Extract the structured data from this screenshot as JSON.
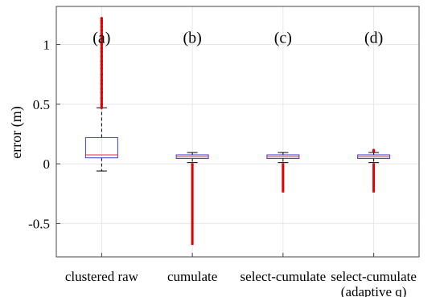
{
  "chart_data": {
    "type": "box",
    "title": "",
    "xlabel": "",
    "ylabel": "error (m)",
    "ylim": [
      -0.78,
      1.32
    ],
    "yticks": [
      -0.5,
      0,
      0.5,
      1
    ],
    "ytick_labels": [
      "-0.5",
      "0",
      "0.5",
      "1"
    ],
    "grid": true,
    "colors": {
      "box": "#3a3ac8",
      "median": "#e03030",
      "whisker": "#000000",
      "outlier": "#e00000",
      "grid": "#e6e6e6"
    },
    "groups": [
      {
        "label_lines": [
          "clustered raw"
        ],
        "panel": "(a)",
        "q1": 0.05,
        "median": 0.075,
        "q3": 0.22,
        "whisker_low": -0.06,
        "whisker_high": 0.47,
        "outlier_ranges": [
          [
            0.47,
            1.22
          ]
        ],
        "outlier_points": [
          1.22,
          1.2,
          1.18,
          1.15,
          1.12,
          1.09,
          1.06,
          1.03,
          1.0,
          0.97,
          0.94,
          0.9,
          0.86,
          0.83,
          0.8,
          0.75,
          0.7,
          0.67,
          0.63,
          0.6,
          0.55,
          0.5,
          0.47
        ]
      },
      {
        "label_lines": [
          "cumulate"
        ],
        "panel": "(b)",
        "q1": 0.045,
        "median": 0.06,
        "q3": 0.075,
        "whisker_low": 0.01,
        "whisker_high": 0.095,
        "outlier_ranges": [
          [
            -0.68,
            0.005
          ]
        ],
        "outlier_points": []
      },
      {
        "label_lines": [
          "select-cumulate"
        ],
        "panel": "(c)",
        "q1": 0.045,
        "median": 0.06,
        "q3": 0.075,
        "whisker_low": 0.01,
        "whisker_high": 0.095,
        "outlier_ranges": [
          [
            -0.24,
            0.005
          ]
        ],
        "outlier_points": []
      },
      {
        "label_lines": [
          "select-cumulate",
          "(adaptive q)"
        ],
        "panel": "(d)",
        "q1": 0.045,
        "median": 0.06,
        "q3": 0.075,
        "whisker_low": 0.01,
        "whisker_high": 0.095,
        "outlier_ranges": [
          [
            -0.24,
            0.005
          ]
        ],
        "outlier_points": [
          0.105,
          0.115
        ]
      }
    ]
  }
}
